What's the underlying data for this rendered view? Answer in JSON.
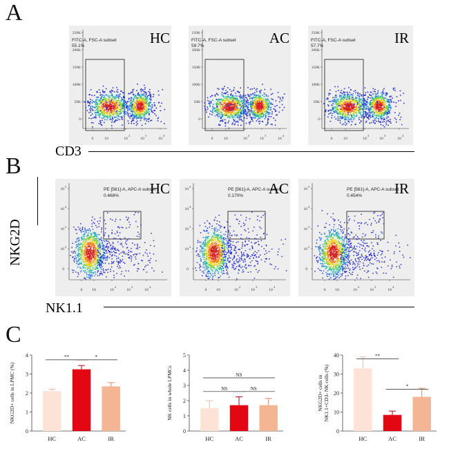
{
  "panels": {
    "a": "A",
    "b": "B",
    "c": "C"
  },
  "panel_a": {
    "axis_title": "CD3",
    "plots": [
      {
        "group": "HC",
        "gate": "FITC-A, FSC-A subset",
        "percent": "55.1%"
      },
      {
        "group": "AC",
        "gate": "FITC-A, FSC-A subset",
        "percent": "59.7%"
      },
      {
        "group": "IR",
        "gate": "FITC-A, FSC-A subset",
        "percent": "57.7%"
      }
    ],
    "y_ticks": [
      "250K",
      "200K",
      "150K",
      "100K",
      "50K",
      "0"
    ],
    "x_ticks": [
      "0",
      "10",
      "10",
      "10",
      "10"
    ],
    "x_exps": [
      "2",
      "3",
      "4"
    ]
  },
  "panel_b": {
    "x_axis_title": "NK1.1",
    "y_axis_title": "NKG2D",
    "plots": [
      {
        "group": "HC",
        "gate": "PE [561]-A, APC-A subset",
        "percent": "0.468%"
      },
      {
        "group": "AC",
        "gate": "PE [561]-A, APC-A subset",
        "percent": "0.170%"
      },
      {
        "group": "IR",
        "gate": "PE [561]-A, APC-A subset",
        "percent": "0.454%"
      }
    ],
    "y_ticks": [
      "10",
      "10",
      "10",
      "10",
      "0"
    ],
    "y_exps": [
      "5",
      "4",
      "3",
      "2"
    ]
  },
  "colors": {
    "hc": "#fde3d6",
    "ac": "#e30613",
    "ir": "#f4b594",
    "axis": "#333333",
    "plot_bg": "#eeeeee",
    "gate": "#111111"
  },
  "chart_data": [
    {
      "type": "bar",
      "title": "",
      "ylabel": "NKG2D+ cells in LPMC (%)",
      "xlabel": "",
      "categories": [
        "HC",
        "AC",
        "IR"
      ],
      "values": [
        2.1,
        3.25,
        2.35
      ],
      "errors": [
        0.1,
        0.2,
        0.2
      ],
      "ylim": [
        0,
        4
      ],
      "y_ticks": [
        "0",
        "1",
        "2",
        "3",
        "4"
      ],
      "comparisons": [
        {
          "from": 0,
          "to": 1,
          "label": "**",
          "y": 3.75
        },
        {
          "from": 1,
          "to": 2,
          "label": "*",
          "y": 3.75
        }
      ]
    },
    {
      "type": "bar",
      "title": "",
      "ylabel": "NK cells in whole LPMCs",
      "xlabel": "",
      "categories": [
        "HC",
        "AC",
        "IR"
      ],
      "values": [
        1.5,
        1.7,
        1.7
      ],
      "errors": [
        0.5,
        0.55,
        0.45
      ],
      "ylim": [
        0,
        5
      ],
      "y_ticks": [
        "0",
        "1",
        "2",
        "3",
        "4",
        "5"
      ],
      "comparisons": [
        {
          "from": 0,
          "to": 1,
          "label": "NS",
          "y": 2.6
        },
        {
          "from": 1,
          "to": 2,
          "label": "NS",
          "y": 2.6
        },
        {
          "from": 0,
          "to": 2,
          "label": "NS",
          "y": 3.5
        }
      ]
    },
    {
      "type": "bar",
      "title": "",
      "ylabel": "NKG2D+ cells in NK1.1+CD3- NK cells (%)",
      "xlabel": "",
      "categories": [
        "HC",
        "AC",
        "IR"
      ],
      "values": [
        33,
        8.5,
        18
      ],
      "errors": [
        6,
        2,
        4.5
      ],
      "ylim": [
        0,
        40
      ],
      "y_ticks": [
        "0",
        "10",
        "20",
        "30",
        "40"
      ],
      "comparisons": [
        {
          "from": 0,
          "to": 1,
          "label": "**",
          "y": 38
        },
        {
          "from": 1,
          "to": 2,
          "label": "*",
          "y": 22
        }
      ]
    }
  ]
}
